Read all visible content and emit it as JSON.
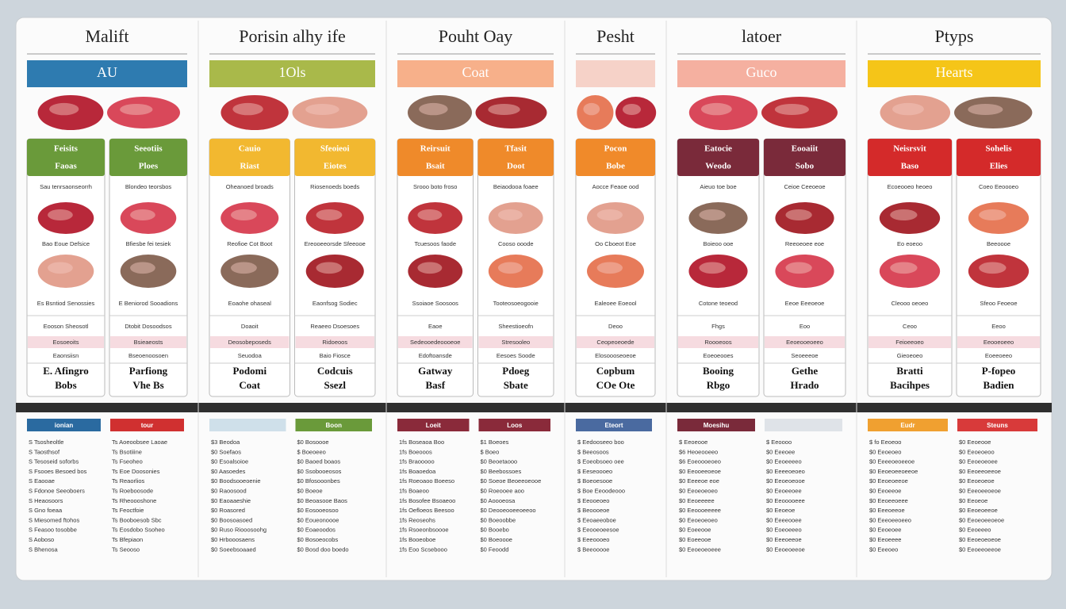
{
  "panels": [
    {
      "title": "Malift",
      "banner": "AU",
      "color": "#2e7bb0",
      "cardColor": "#6a9a3a",
      "cards": [
        {
          "h": [
            "Feisits",
            "Faoas"
          ],
          "t": [
            "Sau tenrsaonseorrh",
            "Bao Eoue Defsice",
            "Es Bsntiod Senossies"
          ],
          "r": [
            "Eooson Sheosotl",
            "Eosoeoits",
            "Eaonsiisn"
          ],
          "b": [
            "E. Afingro",
            "Bobs"
          ]
        },
        {
          "h": [
            "Seeotiis",
            "Ploes"
          ],
          "t": [
            "Blondeo teorsbos",
            "Bfiesbe fei tesiek",
            "E Beniorod Sooadions"
          ],
          "r": [
            "Dtobit Dosoodsos",
            "Bsieaeosts",
            "Bseoenoosoen"
          ],
          "b": [
            "Parfiong",
            "Vhe Bs"
          ]
        }
      ],
      "lists": [
        {
          "head": "ionian",
          "color": "#2a6aa0",
          "rows": [
            "S Tsosheoltle",
            "S Taosthsof",
            "S Tesoseid soforbs",
            "S Fsooes Besoed bos",
            "S Eaooae",
            "S Fdonoe Seeoboers",
            "S Heaosoors",
            "S Gno foeaa",
            "S Miesomed ftohos",
            "S Feasoo tosobbe",
            "S Aoboso",
            "S Bhenosa"
          ]
        },
        {
          "head": "tour",
          "color": "#d03030",
          "rows": [
            "Ts Aoeoobsee Laoae",
            "Ts Bsotiiine",
            "Ts Fseoheo",
            "Ts Eoe Doosonies",
            "Ts Reaorlios",
            "Ts Roeboosode",
            "Ts Rheoooshone",
            "Ts Feoctfoie",
            "Ts Booboesob Sbc",
            "Ts Eosdobo Ssoheo",
            "Ts Bfepiaon",
            "Ts Seooso"
          ]
        }
      ]
    },
    {
      "title": "Porisin alhy ife",
      "banner": "1Ols",
      "color": "#a9b94a",
      "cardColor": "#f2b830",
      "cards": [
        {
          "h": [
            "Cauio",
            "Riast"
          ],
          "t": [
            "Oheanoed broads",
            "Reofioe Cot Boot",
            "Eoaohe ohaseal"
          ],
          "r": [
            "Doaoit",
            "Deosobeposeds",
            "Seuodoa"
          ],
          "b": [
            "Podomi",
            "Coat"
          ]
        },
        {
          "h": [
            "Sfeoieoi",
            "Eiotes"
          ],
          "t": [
            "Riosenoeds boeds",
            "Ereooeeorsde Sfeeooe",
            "Eaonfsog Sodiec"
          ],
          "r": [
            "Reaeeo Dsoesoes",
            "Ridoeoos",
            "Baio Fiosce"
          ],
          "b": [
            "Codcuis",
            "Ssezl"
          ]
        }
      ],
      "lists": [
        {
          "head": "",
          "color": "#cfe0ea",
          "rows": [
            "$3 Beodoa",
            "$0 Soefaos",
            "$0 Esoalsoioe",
            "$0 Aasoedes",
            "$0 Boodsooeoenie",
            "$0 Raoosood",
            "$0 Eaoaaeshie",
            "$0 Roasored",
            "$0 Boosoasoed",
            "$0 Ruso Riooosoohg",
            "$0 Hrbooosaens",
            "$0 Soeebsoaaed"
          ]
        },
        {
          "head": "Boon",
          "color": "#6a9a3a",
          "rows": [
            "$0 Bosoooe",
            "$ Boeoeeo",
            "$0 Baoed boaos",
            "$0 Ssobooeosos",
            "$0 Bfosooonbes",
            "$0 Boeoe",
            "$0 Beoasooe Baos",
            "$0 Eosooeosoo",
            "$0 Eoueonoooe",
            "$0 Eoaeoodos",
            "$0 Bosoeocobs",
            "$0 Bosd doo boedo"
          ]
        }
      ]
    },
    {
      "title": "Pouht Oay",
      "banner": "Coat",
      "color": "#f7b08a",
      "cardColor": "#ef8a2a",
      "cards": [
        {
          "h": [
            "Reirsuit",
            "Bsait"
          ],
          "t": [
            "Srooo boto froso",
            "Tcuesoos faode",
            "Ssoiaoe Soosoos"
          ],
          "r": [
            "Eaoe",
            "Sedeooedeoooeoe",
            "Edoftoansde"
          ],
          "b": [
            "Gatway",
            "Basf"
          ]
        },
        {
          "h": [
            "Tfasit",
            "Doot"
          ],
          "t": [
            "Beiaodooa foaee",
            "Cooso ooode",
            "Tooteosoeogooie"
          ],
          "r": [
            "Sheestioeofn",
            "Stresooleo",
            "Eesoes Soode"
          ],
          "b": [
            "Pdoeg",
            "Sbate"
          ]
        }
      ],
      "lists": [
        {
          "head": "Loeit",
          "color": "#8a2a3a",
          "rows": [
            "1fs Boseaoa Boo",
            "1fs Boeooos",
            "1fs Braooooo",
            "1fs Boaoedoa",
            "1fs Roeoaoo Boeeso",
            "1fs Boaeoo",
            "1fs Bosofee Bsoaeoo",
            "1fs Oefloeos Beesoo",
            "1fs Reoseohs",
            "1fs Rsoeonbsoooe",
            "1fs Booeoboe",
            "1fs Eoo Scsebooo"
          ]
        },
        {
          "head": "Loos",
          "color": "#8a2a3a",
          "rows": [
            "$1 Boeoes",
            "$ Boeo",
            "$0 Beoetaooo",
            "$0 Beebossoes",
            "$0 Soeoe Beoeeoeooe",
            "$0 Roeooee aoo",
            "$0 Aoooeosa",
            "$0 Deooeooeeoeeoo",
            "$0 Boeoobbe",
            "$0 Booebo",
            "$0 Boeoooe",
            "$0 Feoodd"
          ]
        }
      ]
    },
    {
      "title": "Pesht",
      "banner": "",
      "color": "#f6d2c8",
      "cardColor": "#f08a2a",
      "cards": [
        {
          "h": [
            "Pocon",
            "Bobe"
          ],
          "t": [
            "Aocce Feaoe ood",
            "Oo Cboeot Eoe",
            "Ealeoee Eoeool"
          ],
          "r": [
            "Deoo",
            "Ceopeoeoede",
            "Elosoooseoeoe"
          ],
          "b": [
            "Copbum",
            "COe Ote"
          ]
        }
      ],
      "lists": [
        {
          "head": "Eteort",
          "color": "#4a6aa0",
          "rows": [
            "$ Eedooseeo boo",
            "$ Beeosoos",
            "$ Eoeobsoeo oee",
            "$ Eeseoooeo",
            "$ Boeoesooe",
            "$ Boe Eeoodeooo",
            "$ Eeooeoeo",
            "$ Beoooeoe",
            "$ Eeoaeeoboe",
            "$ Eeooeoeesoe",
            "$ Eeeoooeo",
            "$ Beeooooe"
          ]
        }
      ]
    },
    {
      "title": "latoer",
      "banner": "Guco",
      "color": "#f5b0a0",
      "cardColor": "#7a2a3a",
      "cards": [
        {
          "h": [
            "Eatocie",
            "Weodo"
          ],
          "t": [
            "Aieuo toe boe",
            "Boieoo ooe",
            "Cotone teoeod"
          ],
          "r": [
            "Fhgs",
            "Roooeoos",
            "Eoeoeooes"
          ],
          "b": [
            "Booing",
            "Rbgo"
          ]
        },
        {
          "h": [
            "Eooaiit",
            "Sobo"
          ],
          "t": [
            "Ceioe Ceeoeoe",
            "Reeoeoee eoe",
            "Eeoe Eeeoeoe"
          ],
          "r": [
            "Eoo",
            "Eeoeooeoeeo",
            "Seoeeeoe"
          ],
          "b": [
            "Gethe",
            "Hrado"
          ]
        }
      ],
      "lists": [
        {
          "head": "Moesihu",
          "color": "#7a2a3a",
          "rows": [
            "$ Eeoeooe",
            "$6 Heoeooeeo",
            "$6 Eoeoooeoeo",
            "$0 Eeooeeoeoe",
            "$0 Eeeeoe eoe",
            "$0 Eeoeoeoeo",
            "$0 Eeoeeeee",
            "$0 Eeoooeeeee",
            "$0 Eeoeoeoeo",
            "$0 Eoeeooe",
            "$0 Eoeeooe",
            "$0 Eeoeoeoeee"
          ]
        },
        {
          "head": "",
          "color": "#dfe3e8",
          "rows": [
            "$ Eeoooo",
            "$0 Eeeoee",
            "$0 Eeoeeeeo",
            "$0 Eeeeoeoeo",
            "$0 Eeoeoeooe",
            "$0 Eeoeeoee",
            "$0 Eeooooeee",
            "$0 Eeoeoe",
            "$0 Eeeeooee",
            "$0 Eoeoeeeo",
            "$0 Eeeoeeoe",
            "$0 Eeoeoeeoe"
          ]
        }
      ]
    },
    {
      "title": "Ptyps",
      "banner": "Hearts",
      "color": "#f5c518",
      "cardColor": "#d42a2a",
      "cards": [
        {
          "h": [
            "Neisrsvit",
            "Baso"
          ],
          "t": [
            "Ecoeooeo heoeo",
            "Eo eoeoo",
            "Cleooo oeoeo"
          ],
          "r": [
            "Ceoo",
            "Feioeeoeo",
            "Gieoeoeo"
          ],
          "b": [
            "Bratti",
            "Bacihpes"
          ]
        },
        {
          "h": [
            "Sohelis",
            "Elies"
          ],
          "t": [
            "Coeo Eeoooeo",
            "Beeoooe",
            "Sfeoo Feoeoe"
          ],
          "r": [
            "Eeoo",
            "Eeooeoeeo",
            "Eoeeoeeo"
          ],
          "b": [
            "P-fopeo",
            "Badien"
          ]
        }
      ],
      "lists": [
        {
          "head": "Eudr",
          "color": "#f0a030",
          "rows": [
            "$ fo Eeoeoo",
            "$0 Eeoeoeo",
            "$0 Eeeeoeoeeoe",
            "$0 Eeoeoeeoeeoe",
            "$0 Eeoeoeeoe",
            "$0 Eeoeeoe",
            "$0 Eeoeeoeee",
            "$0 Eeeoeeoe",
            "$0 Eeeoeeoeeo",
            "$0 Eeoeoee",
            "$0 Eeoeeee",
            "$0 Eeeoeo"
          ]
        },
        {
          "head": "Steuns",
          "color": "#d83a3a",
          "rows": [
            "$0 Eeoeooe",
            "$0 Eeoeoeoo",
            "$0 Eeoeoeoee",
            "$0 Eeoeeoeeoe",
            "$0 Eeoeoeoe",
            "$0 Eeeoeeoeoe",
            "$0 Eeoeoe",
            "$0 Eeoeoeeoe",
            "$0 Eeoeoeeoeoe",
            "$0 Eeoeeeo",
            "$0 Eeoeoeoeoe",
            "$0 Eeoeeoeeoe"
          ]
        }
      ]
    }
  ]
}
